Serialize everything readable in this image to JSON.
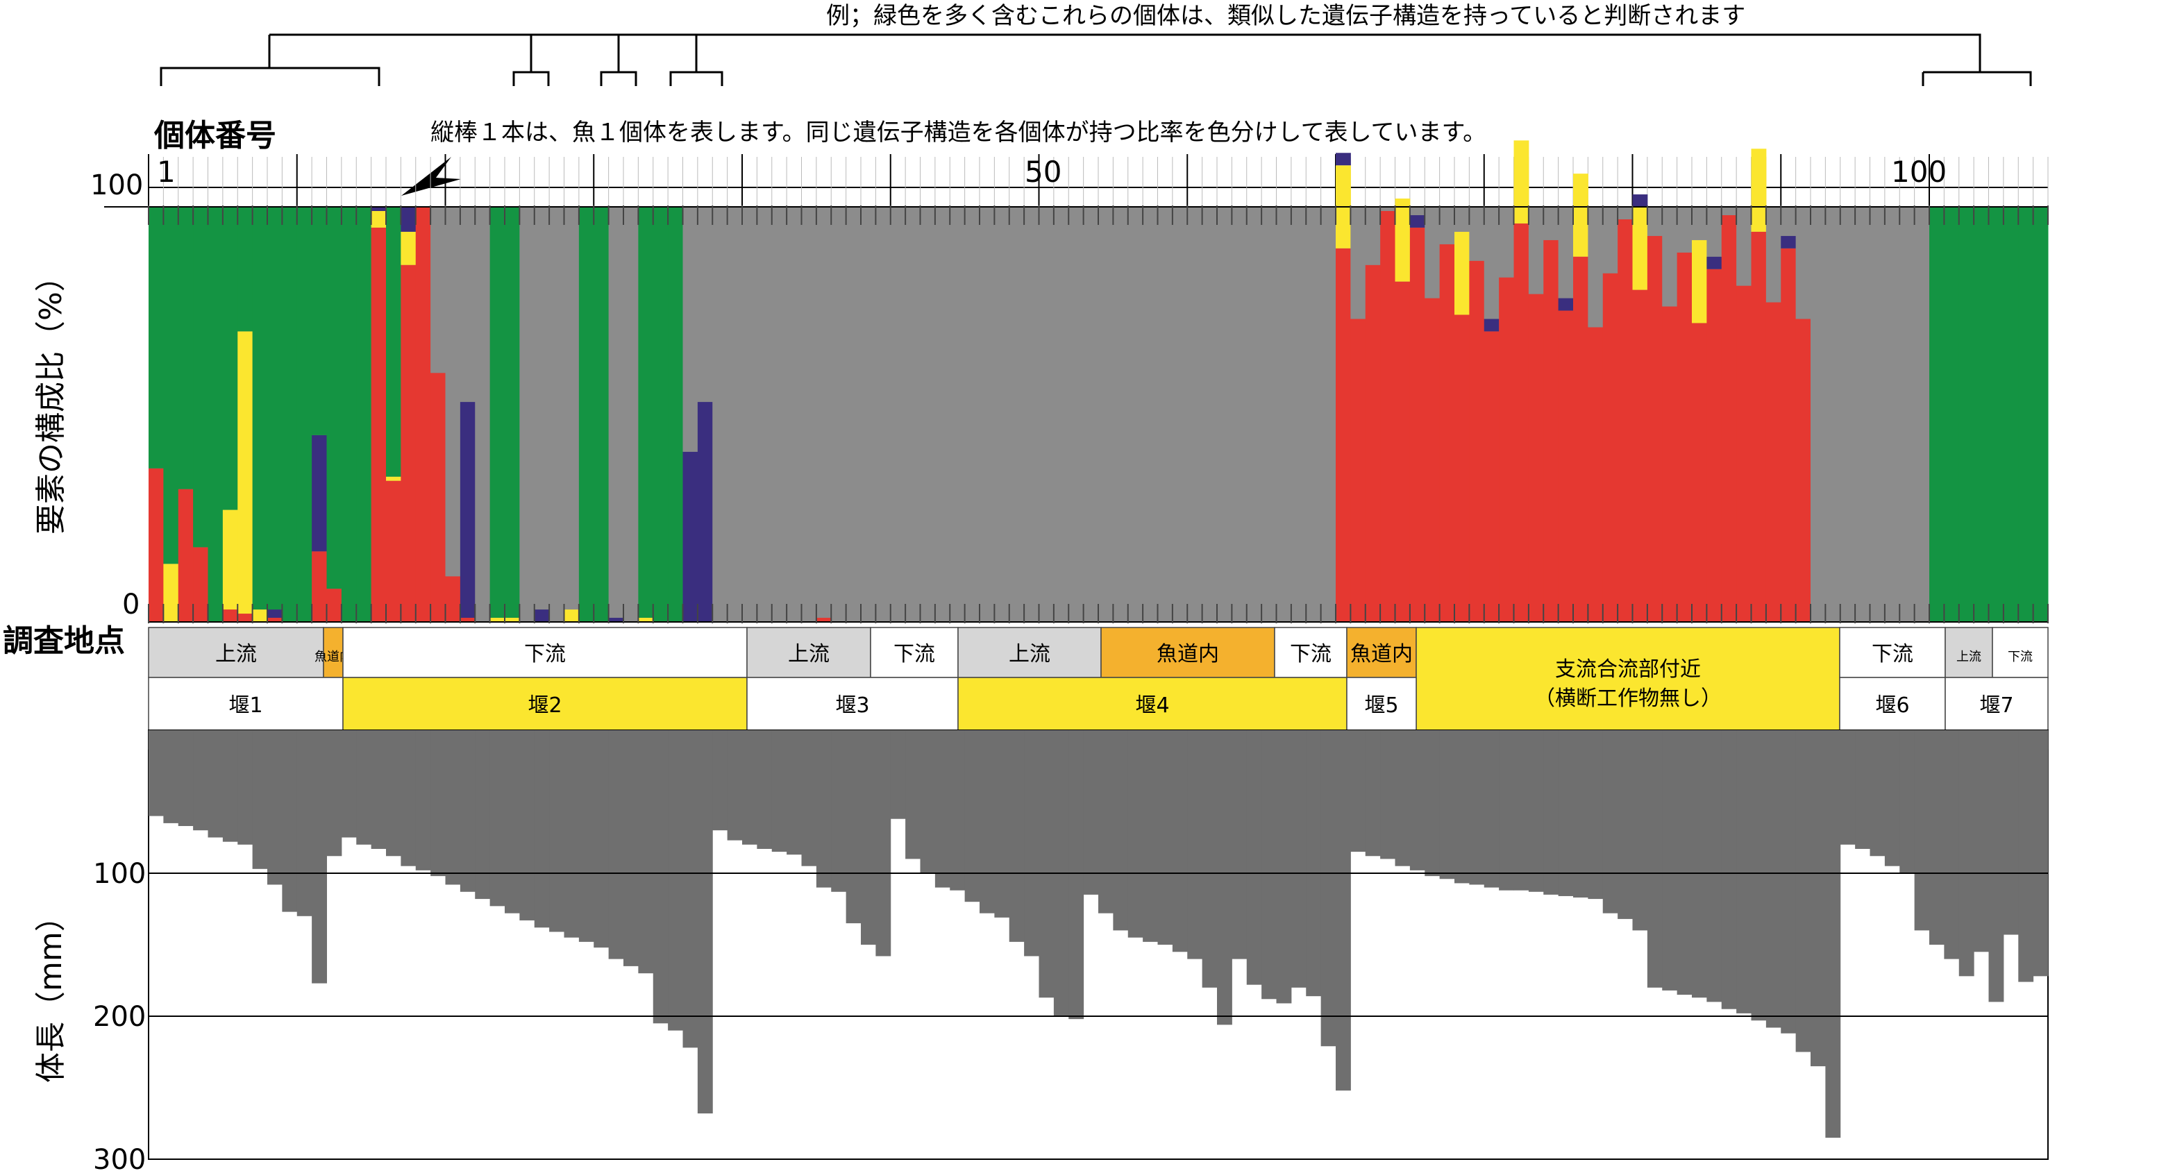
{
  "text": {
    "example_note": "例；緑色を多く含むこれらの個体は、類似した遺伝子構造を持っていると判断されます",
    "bar_note": "縦棒１本は、魚１個体を表します。同じ遺伝子構造を各個体が持つ比率を色分けして表しています。",
    "individual_label": "個体番号",
    "composition_ylabel": "要素の構成比（%）",
    "site_label": "調査地点",
    "length_ylabel": "体長（mm）"
  },
  "colors": {
    "green": "#149443",
    "gray": "#8c8c8c",
    "red": "#e53831",
    "yellow": "#fbe62f",
    "navy": "#3a2e7f",
    "orange": "#f4b12e",
    "lightgray": "#d6d6d6",
    "length_bar": "#6f6f6f"
  },
  "chart_data": [
    {
      "type": "bar",
      "stacked": true,
      "ylabel": "要素の構成比（%）",
      "ylim": [
        0,
        100
      ],
      "x_ticks": [
        "1",
        "50",
        "100"
      ],
      "y_ticks": [
        "100",
        "0"
      ],
      "components": [
        "red",
        "yellow",
        "navy",
        "gray",
        "green"
      ],
      "individuals": [
        [
          37,
          0,
          0,
          0,
          63
        ],
        [
          0,
          14,
          0,
          0,
          86
        ],
        [
          32,
          0,
          0,
          0,
          68
        ],
        [
          18,
          0,
          0,
          0,
          82
        ],
        [
          0,
          0,
          0,
          0,
          100
        ],
        [
          3,
          24,
          0,
          0,
          73
        ],
        [
          2,
          68,
          0,
          0,
          30
        ],
        [
          0,
          3,
          0,
          0,
          97
        ],
        [
          1,
          0,
          2,
          0,
          97
        ],
        [
          0,
          0,
          0,
          0,
          100
        ],
        [
          0,
          0,
          0,
          0,
          100
        ],
        [
          17,
          0,
          28,
          0,
          55
        ],
        [
          8,
          0,
          0,
          0,
          92
        ],
        [
          0,
          0,
          0,
          0,
          100
        ],
        [
          0,
          0,
          0,
          0,
          100
        ],
        [
          95,
          4,
          1,
          0,
          0
        ],
        [
          34,
          1,
          0,
          0,
          65
        ],
        [
          86,
          8,
          6,
          0,
          0
        ],
        [
          100,
          0,
          0,
          0,
          0
        ],
        [
          60,
          0,
          0,
          40,
          0
        ],
        [
          11,
          0,
          0,
          89,
          0
        ],
        [
          1,
          0,
          52,
          47,
          0
        ],
        [
          0,
          0,
          0,
          100,
          0
        ],
        [
          0,
          1,
          0,
          0,
          99
        ],
        [
          0,
          1,
          0,
          0,
          99
        ],
        [
          0,
          0,
          0,
          100,
          0
        ],
        [
          0,
          0,
          3,
          97,
          0
        ],
        [
          0,
          0,
          0,
          100,
          0
        ],
        [
          0,
          3,
          0,
          97,
          0
        ],
        [
          0,
          0,
          0,
          0,
          100
        ],
        [
          0,
          0,
          0,
          0,
          100
        ],
        [
          0,
          0,
          1,
          99,
          0
        ],
        [
          0,
          0,
          0,
          100,
          0
        ],
        [
          0,
          1,
          0,
          0,
          99
        ],
        [
          0,
          0,
          0,
          0,
          100
        ],
        [
          0,
          0,
          0,
          0,
          100
        ],
        [
          0,
          0,
          41,
          59,
          0
        ],
        [
          0,
          0,
          53,
          47,
          0
        ],
        [
          0,
          0,
          0,
          100,
          0
        ],
        [
          0,
          0,
          0,
          100,
          0
        ],
        [
          0,
          0,
          0,
          100,
          0
        ],
        [
          0,
          0,
          0,
          100,
          0
        ],
        [
          0,
          0,
          0,
          100,
          0
        ],
        [
          0,
          0,
          0,
          100,
          0
        ],
        [
          0,
          0,
          0,
          100,
          0
        ],
        [
          1,
          0,
          0,
          99,
          0
        ],
        [
          0,
          0,
          0,
          100,
          0
        ],
        [
          0,
          0,
          0,
          100,
          0
        ],
        [
          0,
          0,
          0,
          100,
          0
        ],
        [
          0,
          0,
          0,
          100,
          0
        ],
        [
          0,
          0,
          0,
          100,
          0
        ],
        [
          0,
          0,
          0,
          100,
          0
        ],
        [
          0,
          0,
          0,
          100,
          0
        ],
        [
          0,
          0,
          0,
          100,
          0
        ],
        [
          0,
          0,
          0,
          100,
          0
        ],
        [
          0,
          0,
          0,
          100,
          0
        ],
        [
          0,
          0,
          0,
          100,
          0
        ],
        [
          0,
          0,
          0,
          100,
          0
        ],
        [
          0,
          0,
          0,
          100,
          0
        ],
        [
          0,
          0,
          0,
          100,
          0
        ]
      ],
      "segments_note": ""
    },
    {
      "type": "bar",
      "ylabel": "体長（mm）",
      "ylim": [
        0,
        300
      ],
      "y_ticks": [
        "100",
        "200",
        "300"
      ],
      "values": [
        60,
        65,
        67,
        70,
        75,
        78,
        80,
        97,
        108,
        127,
        130,
        177,
        88,
        75,
        80,
        83,
        88,
        95,
        98,
        102,
        108,
        113,
        118,
        123,
        128,
        133,
        138,
        141,
        145,
        148,
        152,
        160,
        165,
        170,
        205,
        210,
        222,
        268,
        70,
        77,
        80,
        83,
        85,
        87,
        95,
        110,
        113,
        135,
        150,
        158,
        62,
        90,
        100,
        110,
        112,
        120,
        128,
        131,
        148,
        158,
        187,
        200,
        202,
        115,
        128,
        140,
        145,
        148,
        150,
        155,
        160,
        180,
        206,
        160,
        178,
        188,
        191,
        180,
        186,
        221,
        252,
        85,
        88,
        90,
        95,
        98,
        102,
        104,
        107,
        108,
        110,
        112,
        112,
        113,
        115,
        116,
        117,
        118,
        128,
        132,
        140,
        180,
        182,
        185,
        187,
        190,
        195,
        198,
        203,
        208,
        212,
        225,
        235,
        285,
        80,
        83,
        88,
        95,
        100,
        140,
        150,
        160,
        172,
        155,
        190,
        143,
        176,
        172
      ]
    }
  ],
  "sites": {
    "row1": [
      {
        "label": "上流",
        "color": "#d6d6d6"
      },
      {
        "label": "魚道内",
        "color": "#f4b12e"
      },
      {
        "label": "下流",
        "color": "#ffffff"
      },
      {
        "label": "上流",
        "color": "#d6d6d6"
      },
      {
        "label": "下流",
        "color": "#ffffff"
      },
      {
        "label": "上流",
        "color": "#d6d6d6"
      },
      {
        "label": "魚道内",
        "color": "#f4b12e"
      },
      {
        "label": "下流",
        "color": "#ffffff"
      },
      {
        "label": "魚道内",
        "color": "#f4b12e"
      },
      {
        "label": "支流合流部付近",
        "color": "#fbe62f"
      },
      {
        "label": "下流",
        "color": "#ffffff"
      },
      {
        "label": "上流",
        "color": "#d6d6d6"
      },
      {
        "label": "下流",
        "color": "#ffffff"
      }
    ],
    "tributary_sub": "（横断工作物無し）",
    "row2": [
      {
        "label": "堰1",
        "color": "#ffffff"
      },
      {
        "label": "堰2",
        "color": "#fbe62f"
      },
      {
        "label": "堰3",
        "color": "#ffffff"
      },
      {
        "label": "堰4",
        "color": "#fbe62f"
      },
      {
        "label": "堰5",
        "color": "#ffffff"
      },
      {
        "label": "堰6",
        "color": "#ffffff"
      },
      {
        "label": "堰7",
        "color": "#ffffff"
      }
    ]
  }
}
